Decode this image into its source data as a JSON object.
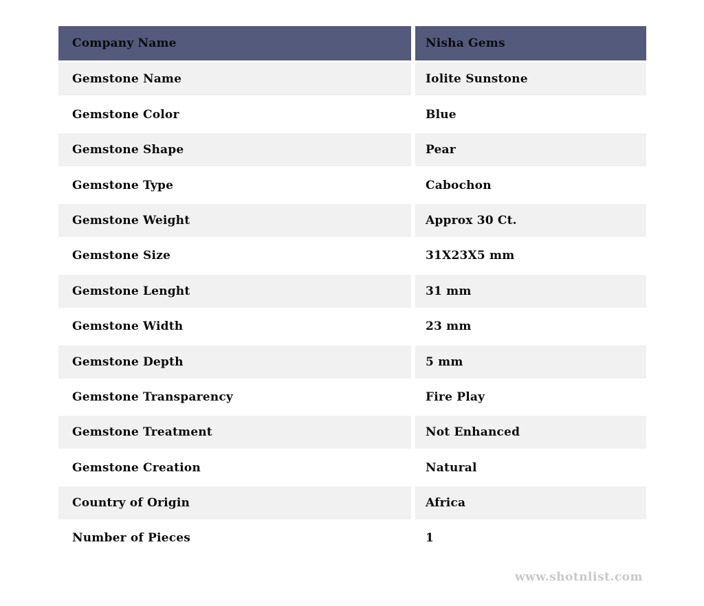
{
  "table": {
    "header": {
      "label": "Company Name",
      "value": "Nisha Gems"
    },
    "rows": [
      {
        "label": "Gemstone Name",
        "value": "Iolite Sunstone"
      },
      {
        "label": "Gemstone Color",
        "value": "Blue"
      },
      {
        "label": "Gemstone Shape",
        "value": "Pear"
      },
      {
        "label": "Gemstone Type",
        "value": "Cabochon"
      },
      {
        "label": "Gemstone Weight",
        "value": "Approx 30 Ct."
      },
      {
        "label": "Gemstone Size",
        "value": "31X23X5 mm"
      },
      {
        "label": "Gemstone Lenght",
        "value": "31 mm"
      },
      {
        "label": "Gemstone Width",
        "value": "23 mm"
      },
      {
        "label": "Gemstone Depth",
        "value": "5 mm"
      },
      {
        "label": "Gemstone Transparency",
        "value": "Fire Play"
      },
      {
        "label": "Gemstone Treatment",
        "value": "Not Enhanced"
      },
      {
        "label": "Gemstone Creation",
        "value": "Natural"
      },
      {
        "label": "Country of Origin",
        "value": "Africa"
      },
      {
        "label": "Number of Pieces",
        "value": "1"
      }
    ]
  },
  "footer": {
    "watermark": "www.shotnlist.com"
  },
  "colors": {
    "header_bg": "#535a7b",
    "row_alt_bg": "#f1f1f1",
    "row_bg": "#ffffff",
    "text": "#0b0b0b",
    "watermark": "#c9c9c9"
  }
}
